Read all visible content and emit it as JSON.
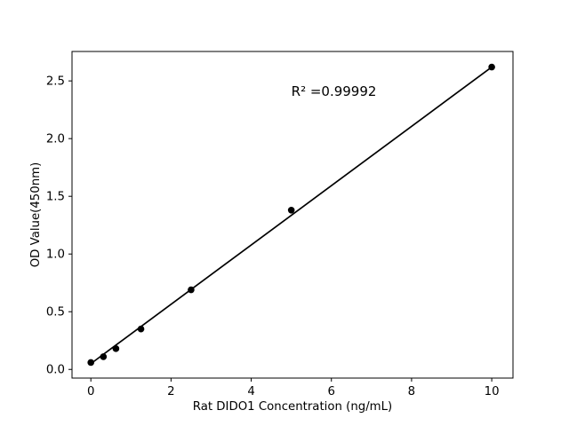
{
  "chart_data": {
    "type": "scatter",
    "title": "",
    "xlabel": "Rat DIDO1 Concentration (ng/mL)",
    "ylabel": "OD Value(450nm)",
    "series": [
      {
        "name": "standard-points",
        "x": [
          0,
          0.313,
          0.625,
          1.25,
          2.5,
          5,
          10
        ],
        "y": [
          0.06,
          0.11,
          0.18,
          0.35,
          0.69,
          1.38,
          2.62
        ]
      }
    ],
    "fit_line": {
      "x": [
        0,
        10
      ],
      "y": [
        0.05,
        2.62
      ]
    },
    "annotation": {
      "text": "R² =0.99992",
      "x": 5.0,
      "y": 2.37
    },
    "xticks": {
      "values": [
        0,
        2,
        4,
        6,
        8,
        10
      ],
      "labels": [
        "0",
        "2",
        "4",
        "6",
        "8",
        "10"
      ]
    },
    "yticks": {
      "values": [
        0,
        0.5,
        1.0,
        1.5,
        2.0,
        2.5
      ],
      "labels": [
        "0.0",
        "0.5",
        "1.0",
        "1.5",
        "2.0",
        "2.5"
      ]
    },
    "xlim": [
      -0.47,
      10.53
    ],
    "ylim": [
      -0.075,
      2.755
    ],
    "grid": false,
    "legend": false,
    "colors": {
      "marker": "#000000",
      "line": "#000000",
      "axes": "#000000",
      "background": "#ffffff"
    }
  }
}
